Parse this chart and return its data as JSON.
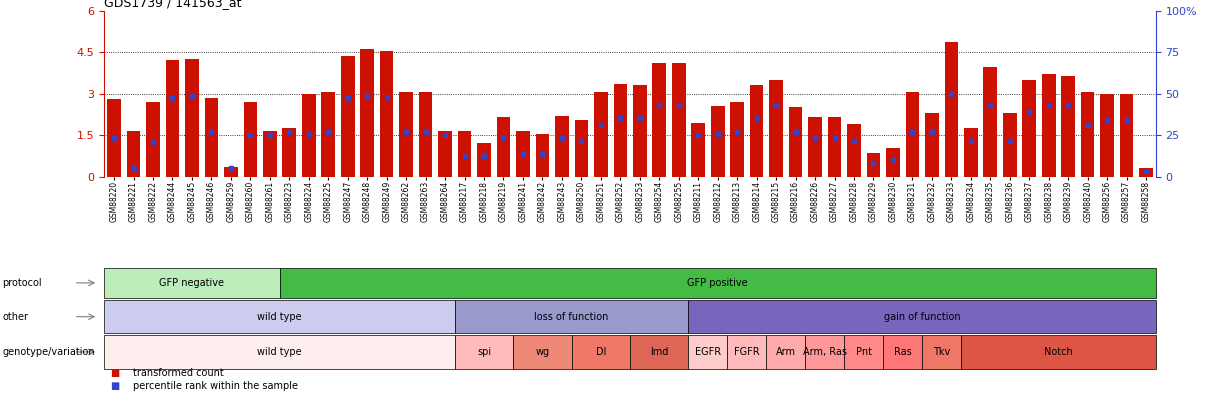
{
  "title": "GDS1739 / 141563_at",
  "samples": [
    "GSM88220",
    "GSM88221",
    "GSM88222",
    "GSM88244",
    "GSM88245",
    "GSM88246",
    "GSM88259",
    "GSM88260",
    "GSM88261",
    "GSM88223",
    "GSM88224",
    "GSM88225",
    "GSM88247",
    "GSM88248",
    "GSM88249",
    "GSM88262",
    "GSM88263",
    "GSM88264",
    "GSM88217",
    "GSM88218",
    "GSM88219",
    "GSM88241",
    "GSM88242",
    "GSM88243",
    "GSM88250",
    "GSM88251",
    "GSM88252",
    "GSM88253",
    "GSM88254",
    "GSM88255",
    "GSM88211",
    "GSM88212",
    "GSM88213",
    "GSM88214",
    "GSM88215",
    "GSM88216",
    "GSM88226",
    "GSM88227",
    "GSM88228",
    "GSM88229",
    "GSM88230",
    "GSM88231",
    "GSM88232",
    "GSM88233",
    "GSM88234",
    "GSM88235",
    "GSM88236",
    "GSM88237",
    "GSM88238",
    "GSM88239",
    "GSM88240",
    "GSM88256",
    "GSM88257",
    "GSM88258"
  ],
  "bar_heights": [
    2.8,
    1.65,
    2.7,
    4.2,
    4.25,
    2.85,
    0.35,
    2.7,
    1.65,
    1.75,
    3.0,
    3.05,
    4.35,
    4.6,
    4.55,
    3.05,
    3.05,
    1.65,
    1.65,
    1.2,
    2.15,
    1.65,
    1.55,
    2.2,
    2.05,
    3.05,
    3.35,
    3.3,
    4.1,
    4.1,
    1.95,
    2.55,
    2.7,
    3.3,
    3.5,
    2.5,
    2.15,
    2.15,
    1.9,
    0.85,
    1.05,
    3.05,
    2.3,
    4.85,
    1.75,
    3.95,
    2.3,
    3.5,
    3.7,
    3.65,
    3.05,
    3.0,
    3.0,
    0.3
  ],
  "percentile_ranks": [
    1.4,
    0.3,
    1.25,
    2.85,
    2.9,
    1.6,
    0.3,
    1.5,
    1.5,
    1.6,
    1.55,
    1.6,
    2.85,
    2.9,
    2.88,
    1.6,
    1.6,
    1.5,
    0.75,
    0.75,
    1.4,
    0.8,
    0.8,
    1.4,
    1.3,
    1.85,
    2.1,
    2.1,
    2.6,
    2.6,
    1.5,
    1.55,
    1.6,
    2.1,
    2.6,
    1.6,
    1.4,
    1.4,
    1.3,
    0.5,
    0.6,
    1.6,
    1.6,
    3.0,
    1.3,
    2.6,
    1.3,
    2.35,
    2.6,
    2.6,
    1.85,
    2.05,
    2.05,
    0.2
  ],
  "ylim_left": [
    0,
    6
  ],
  "yticks_left": [
    0,
    1.5,
    3.0,
    4.5,
    6
  ],
  "ytick_labels_left": [
    "0",
    "1.5",
    "3",
    "4.5",
    "6"
  ],
  "yticks_right": [
    0,
    25,
    50,
    75,
    100
  ],
  "ytick_labels_right": [
    "0",
    "25",
    "50",
    "75",
    "100%"
  ],
  "bar_color": "#CC1100",
  "percentile_color": "#3344CC",
  "protocol_groups": [
    {
      "label": "GFP negative",
      "start": 0,
      "end": 8,
      "color": "#BBEECC"
    },
    {
      "label": "GFP positive",
      "start": 9,
      "end": 53,
      "color": "#44BB44"
    }
  ],
  "other_groups": [
    {
      "label": "wild type",
      "start": 0,
      "end": 17,
      "color": "#CCCCEE"
    },
    {
      "label": "loss of function",
      "start": 18,
      "end": 29,
      "color": "#9999CC"
    },
    {
      "label": "gain of function",
      "start": 30,
      "end": 53,
      "color": "#7766BB"
    }
  ],
  "genotype_groups": [
    {
      "label": "wild type",
      "start": 0,
      "end": 17,
      "color": "#FFEEEE"
    },
    {
      "label": "spi",
      "start": 18,
      "end": 20,
      "color": "#FFBBBB"
    },
    {
      "label": "wg",
      "start": 21,
      "end": 23,
      "color": "#EE8877"
    },
    {
      "label": "Dl",
      "start": 24,
      "end": 26,
      "color": "#EE7766"
    },
    {
      "label": "lmd",
      "start": 27,
      "end": 29,
      "color": "#DD6655"
    },
    {
      "label": "EGFR",
      "start": 30,
      "end": 31,
      "color": "#FFCCCC"
    },
    {
      "label": "FGFR",
      "start": 32,
      "end": 33,
      "color": "#FFBBBB"
    },
    {
      "label": "Arm",
      "start": 34,
      "end": 35,
      "color": "#FFAAAA"
    },
    {
      "label": "Arm, Ras",
      "start": 36,
      "end": 37,
      "color": "#FF9999"
    },
    {
      "label": "Pnt",
      "start": 38,
      "end": 39,
      "color": "#FF8888"
    },
    {
      "label": "Ras",
      "start": 40,
      "end": 41,
      "color": "#FF7777"
    },
    {
      "label": "Tkv",
      "start": 42,
      "end": 43,
      "color": "#EE7766"
    },
    {
      "label": "Notch",
      "start": 44,
      "end": 53,
      "color": "#DD5544"
    }
  ],
  "row_labels": [
    "protocol",
    "other",
    "genotype/variation"
  ],
  "legend_items": [
    {
      "label": "transformed count",
      "color": "#CC1100"
    },
    {
      "label": "percentile rank within the sample",
      "color": "#3344CC"
    }
  ]
}
